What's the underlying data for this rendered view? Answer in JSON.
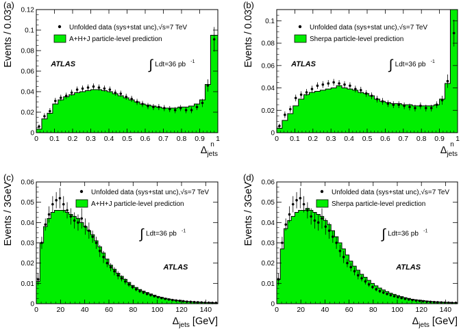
{
  "colors": {
    "fill": "#00ee00",
    "line": "#000000",
    "data": "#000000",
    "background": "#ffffff"
  },
  "chart_data": [
    {
      "panel_label": "(a)",
      "type": "bar",
      "style": "histogram-with-data-points",
      "xlim": [
        0,
        1
      ],
      "ylim": [
        0,
        0.12
      ],
      "x_ticks": [
        "0",
        "0.1",
        "0.2",
        "0.3",
        "0.4",
        "0.5",
        "0.6",
        "0.7",
        "0.8",
        "0.9",
        "1"
      ],
      "y_ticks": [
        "0.02",
        "0.04",
        "0.06",
        "0.08",
        "0.1",
        "0.12"
      ],
      "x_tick_values": [
        0,
        0.1,
        0.2,
        0.3,
        0.4,
        0.5,
        0.6,
        0.7,
        0.8,
        0.9,
        1
      ],
      "y_tick_values": [
        0.02,
        0.04,
        0.06,
        0.08,
        0.1,
        0.12
      ],
      "ylabel": "Events / 0.03",
      "xlabel": {
        "main": "Δ",
        "sub": "jets",
        "sup": "n"
      },
      "legend": {
        "marker_label": "Unfolded data (sys+stat unc),",
        "energy": "√s=7 TeV",
        "box_label": "A+H+J particle-level prediction"
      },
      "atlas": "ATLAS",
      "lumi": {
        "integral": "∫",
        "text": "Ldt=36 pb",
        "exp": "-1"
      },
      "bin_edges": [
        0,
        0.03,
        0.06,
        0.09,
        0.12,
        0.15,
        0.18,
        0.21,
        0.24,
        0.27,
        0.3,
        0.33,
        0.36,
        0.39,
        0.42,
        0.45,
        0.48,
        0.51,
        0.54,
        0.57,
        0.6,
        0.63,
        0.66,
        0.69,
        0.72,
        0.75,
        0.78,
        0.81,
        0.84,
        0.87,
        0.9,
        0.93,
        0.96,
        1.0
      ],
      "prediction": [
        0.0035,
        0.0135,
        0.019,
        0.028,
        0.032,
        0.035,
        0.037,
        0.039,
        0.04,
        0.041,
        0.042,
        0.042,
        0.041,
        0.04,
        0.038,
        0.036,
        0.034,
        0.032,
        0.03,
        0.028,
        0.027,
        0.026,
        0.025,
        0.024,
        0.024,
        0.024,
        0.025,
        0.025,
        0.026,
        0.028,
        0.032,
        0.047,
        0.095
      ],
      "data_y": [
        0.006,
        0.016,
        0.021,
        0.031,
        0.034,
        0.036,
        0.039,
        0.042,
        0.043,
        0.044,
        0.045,
        0.044,
        0.043,
        0.042,
        0.039,
        0.038,
        0.035,
        0.033,
        0.03,
        0.028,
        0.026,
        0.025,
        0.025,
        0.024,
        0.023,
        0.022,
        0.024,
        0.022,
        0.022,
        0.025,
        0.029,
        0.046,
        0.091
      ],
      "data_err": [
        0.002,
        0.003,
        0.003,
        0.003,
        0.003,
        0.003,
        0.003,
        0.003,
        0.003,
        0.003,
        0.003,
        0.003,
        0.003,
        0.003,
        0.003,
        0.003,
        0.003,
        0.003,
        0.003,
        0.003,
        0.003,
        0.003,
        0.003,
        0.003,
        0.003,
        0.003,
        0.003,
        0.003,
        0.003,
        0.003,
        0.004,
        0.006,
        0.012
      ]
    },
    {
      "panel_label": "(b)",
      "type": "bar",
      "style": "histogram-with-data-points",
      "xlim": [
        0,
        1
      ],
      "ylim": [
        0,
        0.11
      ],
      "x_ticks": [
        "0",
        "0.1",
        "0.2",
        "0.3",
        "0.4",
        "0.5",
        "0.6",
        "0.7",
        "0.8",
        "0.9",
        "1"
      ],
      "y_ticks": [
        "0.02",
        "0.04",
        "0.06",
        "0.08",
        "0.1"
      ],
      "x_tick_values": [
        0,
        0.1,
        0.2,
        0.3,
        0.4,
        0.5,
        0.6,
        0.7,
        0.8,
        0.9,
        1
      ],
      "y_tick_values": [
        0.02,
        0.04,
        0.06,
        0.08,
        0.1
      ],
      "ylabel": "Events / 0.03",
      "xlabel": {
        "main": "Δ",
        "sub": "jets",
        "sup": "n"
      },
      "legend": {
        "marker_label": "Unfolded data (sys+stat unc),",
        "energy": "√s=7 TeV",
        "box_label": "Sherpa particle-level prediction"
      },
      "atlas": "ATLAS",
      "lumi": {
        "integral": "∫",
        "text": "Ldt=36 pb",
        "exp": "-1"
      },
      "bin_edges": [
        0,
        0.03,
        0.06,
        0.09,
        0.12,
        0.15,
        0.18,
        0.21,
        0.24,
        0.27,
        0.3,
        0.33,
        0.36,
        0.39,
        0.42,
        0.45,
        0.48,
        0.51,
        0.54,
        0.57,
        0.6,
        0.63,
        0.66,
        0.69,
        0.72,
        0.75,
        0.78,
        0.81,
        0.84,
        0.87,
        0.9,
        0.93,
        0.96,
        1.0
      ],
      "prediction": [
        0.004,
        0.011,
        0.017,
        0.024,
        0.03,
        0.034,
        0.036,
        0.037,
        0.038,
        0.039,
        0.04,
        0.042,
        0.04,
        0.039,
        0.038,
        0.036,
        0.035,
        0.033,
        0.03,
        0.028,
        0.027,
        0.026,
        0.026,
        0.025,
        0.025,
        0.024,
        0.024,
        0.024,
        0.024,
        0.025,
        0.03,
        0.044,
        0.11
      ],
      "data_y": [
        0.006,
        0.016,
        0.021,
        0.031,
        0.034,
        0.036,
        0.039,
        0.042,
        0.043,
        0.044,
        0.045,
        0.044,
        0.043,
        0.042,
        0.039,
        0.038,
        0.035,
        0.033,
        0.03,
        0.028,
        0.026,
        0.025,
        0.025,
        0.024,
        0.023,
        0.022,
        0.024,
        0.022,
        0.022,
        0.025,
        0.029,
        0.046,
        0.089
      ],
      "data_err": [
        0.002,
        0.003,
        0.003,
        0.003,
        0.003,
        0.003,
        0.003,
        0.003,
        0.003,
        0.003,
        0.003,
        0.003,
        0.003,
        0.003,
        0.003,
        0.003,
        0.003,
        0.003,
        0.003,
        0.003,
        0.003,
        0.003,
        0.003,
        0.003,
        0.003,
        0.003,
        0.003,
        0.003,
        0.003,
        0.003,
        0.004,
        0.006,
        0.012
      ]
    },
    {
      "panel_label": "(c)",
      "type": "bar",
      "style": "histogram-with-data-points",
      "xlim": [
        0,
        150
      ],
      "ylim": [
        0,
        0.06
      ],
      "x_ticks": [
        "0",
        "20",
        "40",
        "60",
        "80",
        "100",
        "120",
        "140"
      ],
      "y_ticks": [
        "0.01",
        "0.02",
        "0.03",
        "0.04",
        "0.05",
        "0.06"
      ],
      "x_tick_values": [
        0,
        20,
        40,
        60,
        80,
        100,
        120,
        140
      ],
      "y_tick_values": [
        0.01,
        0.02,
        0.03,
        0.04,
        0.05,
        0.06
      ],
      "ylabel": "Events / 3GeV",
      "xlabel": {
        "main": "Δ",
        "sub": "jets",
        "unit": " [GeV]"
      },
      "legend": {
        "marker_label": "Unfolded data (sys+stat unc),",
        "energy": "√s=7 TeV",
        "box_label": "A+H+J particle-level prediction"
      },
      "atlas": "ATLAS",
      "lumi": {
        "integral": "∫",
        "text": "Ldt=36 pb",
        "exp": "-1"
      },
      "bin_edges": [
        0,
        3,
        6,
        9,
        12,
        15,
        18,
        21,
        24,
        27,
        30,
        33,
        36,
        39,
        42,
        45,
        48,
        51,
        54,
        57,
        60,
        63,
        66,
        69,
        72,
        75,
        78,
        81,
        84,
        87,
        90,
        93,
        96,
        99,
        102,
        105,
        108,
        111,
        114,
        117,
        120,
        123,
        126,
        129,
        132,
        135,
        138,
        141,
        144,
        147,
        150
      ],
      "prediction": [
        0.011,
        0.03,
        0.038,
        0.042,
        0.045,
        0.046,
        0.046,
        0.046,
        0.045,
        0.044,
        0.043,
        0.042,
        0.04,
        0.038,
        0.036,
        0.034,
        0.031,
        0.028,
        0.025,
        0.022,
        0.019,
        0.017,
        0.015,
        0.0135,
        0.012,
        0.0105,
        0.009,
        0.008,
        0.007,
        0.0062,
        0.0055,
        0.0048,
        0.0042,
        0.0036,
        0.0031,
        0.0027,
        0.0023,
        0.002,
        0.0017,
        0.0015,
        0.0013,
        0.0011,
        0.001,
        0.0009,
        0.0008,
        0.0007,
        0.0006,
        0.0005,
        0.0005,
        0.0004
      ],
      "data_y": [
        0.012,
        0.03,
        0.039,
        0.044,
        0.049,
        0.051,
        0.052,
        0.049,
        0.046,
        0.043,
        0.041,
        0.04,
        0.042,
        0.038,
        0.036,
        0.033,
        0.03,
        0.026,
        0.023,
        0.02,
        0.018,
        0.016,
        0.014,
        0.0125,
        0.011,
        0.0095,
        0.0082,
        0.0071,
        0.0062,
        0.0055,
        0.0048,
        0.0042,
        0.0037,
        0.0032,
        0.0028,
        0.0024,
        0.0021,
        0.0018,
        0.0016,
        0.0014,
        0.0012,
        0.001,
        0.0009,
        0.0008,
        0.0007,
        0.0006,
        0.0005,
        0.0005,
        0.0004,
        0.0004
      ],
      "data_err": [
        0.003,
        0.003,
        0.003,
        0.004,
        0.004,
        0.004,
        0.005,
        0.004,
        0.004,
        0.004,
        0.004,
        0.004,
        0.005,
        0.004,
        0.004,
        0.003,
        0.003,
        0.003,
        0.003,
        0.002,
        0.002,
        0.002,
        0.002,
        0.0015,
        0.0015,
        0.0012,
        0.001,
        0.001,
        0.0009,
        0.0008,
        0.0007,
        0.0006,
        0.0005,
        0.0005,
        0.0004,
        0.0004,
        0.0003,
        0.0003,
        0.0003,
        0.0003,
        0.0002,
        0.0002,
        0.0002,
        0.0002,
        0.0002,
        0.0002,
        0.0002,
        0.0002,
        0.0002,
        0.0002
      ]
    },
    {
      "panel_label": "(d)",
      "type": "bar",
      "style": "histogram-with-data-points",
      "xlim": [
        0,
        150
      ],
      "ylim": [
        0,
        0.06
      ],
      "x_ticks": [
        "0",
        "20",
        "40",
        "60",
        "80",
        "100",
        "120",
        "140"
      ],
      "y_ticks": [
        "0.01",
        "0.02",
        "0.03",
        "0.04",
        "0.05",
        "0.06"
      ],
      "x_tick_values": [
        0,
        20,
        40,
        60,
        80,
        100,
        120,
        140
      ],
      "y_tick_values": [
        0.01,
        0.02,
        0.03,
        0.04,
        0.05,
        0.06
      ],
      "ylabel": "Events / 3GeV",
      "xlabel": {
        "main": "Δ",
        "sub": "jets",
        "unit": " [GeV]"
      },
      "legend": {
        "marker_label": "Unfolded data (sys+stat unc),",
        "energy": "√s=7 TeV",
        "box_label": "Sherpa particle-level prediction"
      },
      "atlas": "ATLAS",
      "lumi": {
        "integral": "∫",
        "text": "Ldt=36 pb",
        "exp": "-1"
      },
      "bin_edges": [
        0,
        3,
        6,
        9,
        12,
        15,
        18,
        21,
        24,
        27,
        30,
        33,
        36,
        39,
        42,
        45,
        48,
        51,
        54,
        57,
        60,
        63,
        66,
        69,
        72,
        75,
        78,
        81,
        84,
        87,
        90,
        93,
        96,
        99,
        102,
        105,
        108,
        111,
        114,
        117,
        120,
        123,
        126,
        129,
        132,
        135,
        138,
        141,
        144,
        147,
        150
      ],
      "prediction": [
        0.012,
        0.027,
        0.037,
        0.041,
        0.043,
        0.045,
        0.046,
        0.046,
        0.047,
        0.046,
        0.045,
        0.044,
        0.043,
        0.041,
        0.039,
        0.036,
        0.033,
        0.03,
        0.027,
        0.024,
        0.021,
        0.0185,
        0.0165,
        0.0145,
        0.013,
        0.0115,
        0.01,
        0.0088,
        0.0077,
        0.0068,
        0.006,
        0.0052,
        0.0046,
        0.004,
        0.0035,
        0.003,
        0.0026,
        0.0022,
        0.0019,
        0.0017,
        0.0015,
        0.0013,
        0.0011,
        0.001,
        0.0009,
        0.0008,
        0.0007,
        0.0006,
        0.0005,
        0.0005
      ],
      "data_y": [
        0.012,
        0.03,
        0.039,
        0.044,
        0.049,
        0.051,
        0.052,
        0.049,
        0.046,
        0.043,
        0.041,
        0.04,
        0.042,
        0.038,
        0.036,
        0.033,
        0.03,
        0.026,
        0.023,
        0.02,
        0.018,
        0.016,
        0.014,
        0.0125,
        0.011,
        0.0095,
        0.0082,
        0.0071,
        0.0062,
        0.0055,
        0.0048,
        0.0042,
        0.0037,
        0.0032,
        0.0028,
        0.0024,
        0.0021,
        0.0018,
        0.0016,
        0.0014,
        0.0012,
        0.001,
        0.0009,
        0.0008,
        0.0007,
        0.0006,
        0.0005,
        0.0005,
        0.0004,
        0.0004
      ],
      "data_err": [
        0.003,
        0.003,
        0.003,
        0.004,
        0.004,
        0.004,
        0.005,
        0.004,
        0.004,
        0.004,
        0.004,
        0.004,
        0.005,
        0.004,
        0.004,
        0.003,
        0.003,
        0.003,
        0.003,
        0.002,
        0.002,
        0.002,
        0.002,
        0.0015,
        0.0015,
        0.0012,
        0.001,
        0.001,
        0.0009,
        0.0008,
        0.0007,
        0.0006,
        0.0005,
        0.0005,
        0.0004,
        0.0004,
        0.0003,
        0.0003,
        0.0003,
        0.0003,
        0.0002,
        0.0002,
        0.0002,
        0.0002,
        0.0002,
        0.0002,
        0.0002,
        0.0002,
        0.0002,
        0.0002
      ]
    }
  ]
}
